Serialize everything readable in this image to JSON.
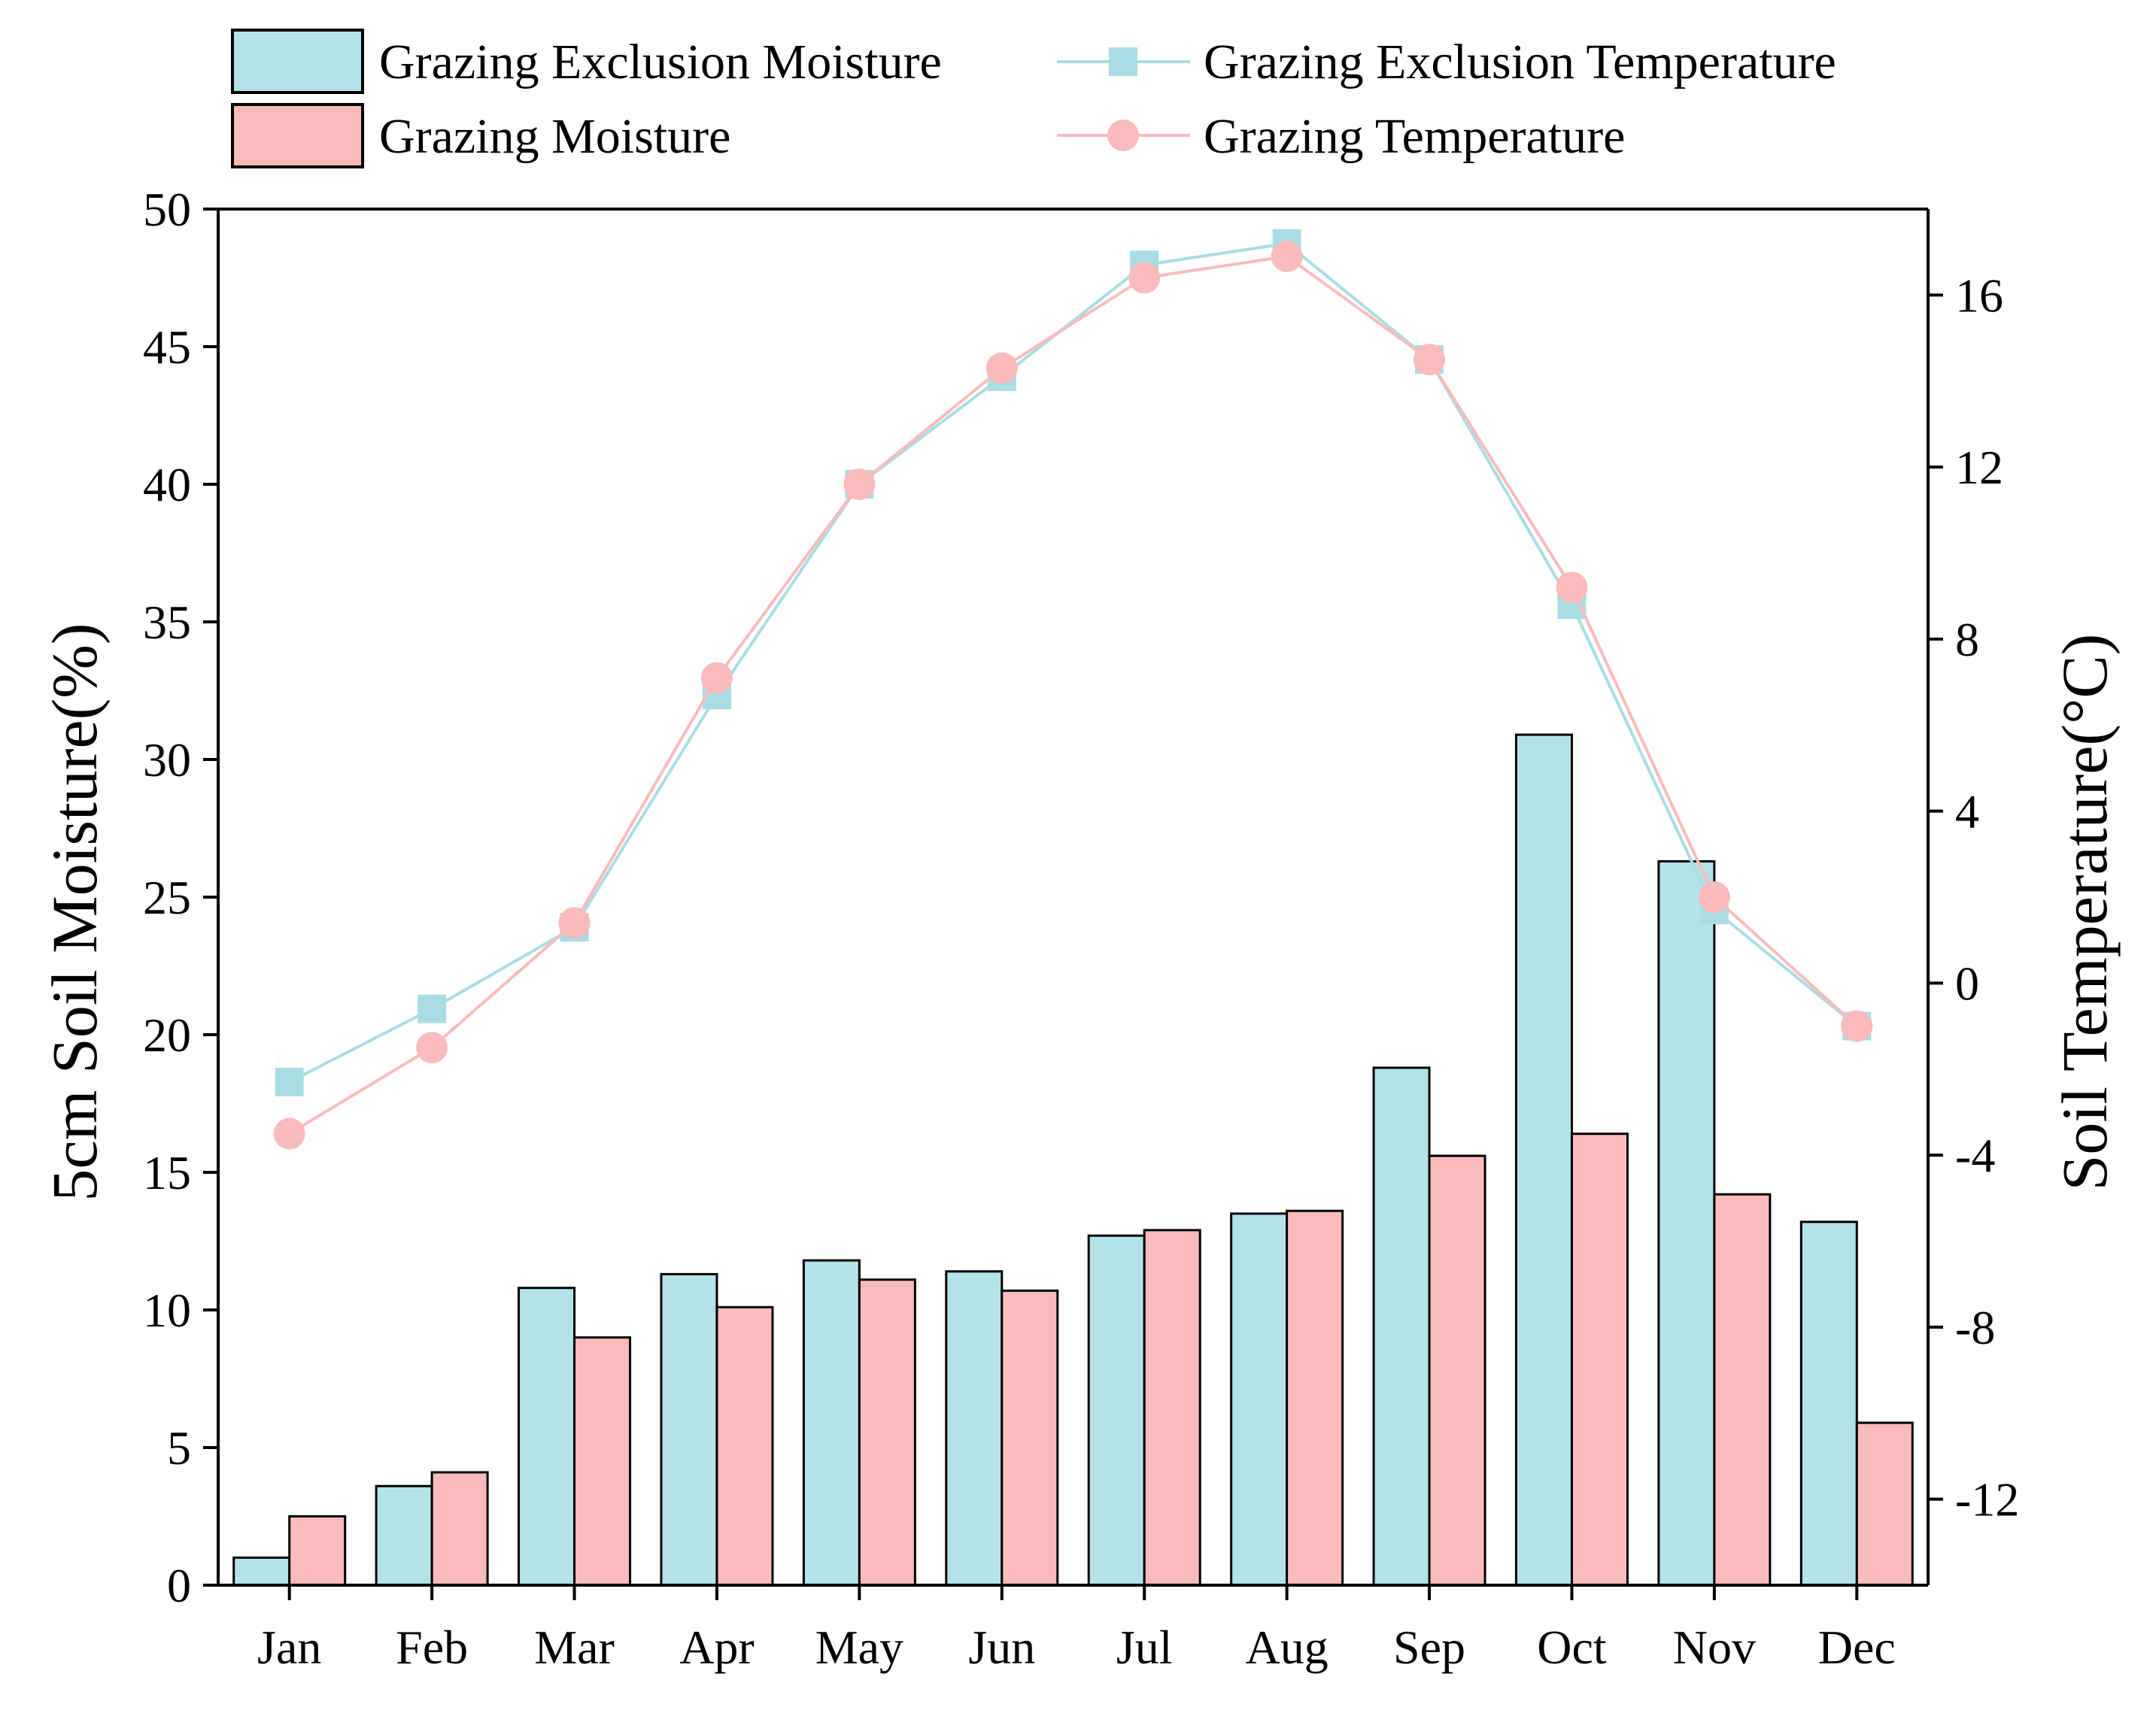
{
  "chart_data": {
    "type": "bar",
    "title": "",
    "xlabel": "",
    "ylabel": "5cm Soil Moisture(%)",
    "y2label": "Soil Temperature(°C)",
    "ylim": [
      0,
      50
    ],
    "y2lim": [
      -14,
      18
    ],
    "yticks": [
      0,
      5,
      10,
      15,
      20,
      25,
      30,
      35,
      40,
      45,
      50
    ],
    "y2ticks": [
      -12,
      -8,
      -4,
      0,
      4,
      8,
      12,
      16
    ],
    "categories": [
      "Jan",
      "Feb",
      "Mar",
      "Apr",
      "May",
      "Jun",
      "Jul",
      "Aug",
      "Sep",
      "Oct",
      "Nov",
      "Dec"
    ],
    "series": [
      {
        "name": "Grazing Exclusion Moisture",
        "kind": "bar",
        "axis": "left",
        "color": "#b3e3e8",
        "values": [
          1.0,
          3.6,
          10.8,
          11.3,
          11.8,
          11.4,
          12.7,
          13.5,
          18.8,
          30.9,
          26.3,
          13.2
        ]
      },
      {
        "name": "Grazing  Moisture",
        "kind": "bar",
        "axis": "left",
        "color": "#fabbbd",
        "values": [
          2.5,
          4.1,
          9.0,
          10.1,
          11.1,
          10.7,
          12.9,
          13.6,
          15.6,
          16.4,
          14.2,
          5.9
        ]
      },
      {
        "name": "Grazing Exclusion Temperature",
        "kind": "line",
        "marker": "square",
        "axis": "right",
        "color": "#a9dde3",
        "values": [
          -2.3,
          -0.6,
          1.3,
          6.7,
          11.6,
          14.1,
          16.7,
          17.2,
          14.5,
          8.8,
          1.7,
          -1.0
        ]
      },
      {
        "name": "Grazing Temperature",
        "kind": "line",
        "marker": "circle",
        "axis": "right",
        "color": "#fabbbd",
        "values": [
          -3.5,
          -1.5,
          1.4,
          7.1,
          11.6,
          14.3,
          16.4,
          16.9,
          14.5,
          9.2,
          2.0,
          -1.0
        ]
      }
    ],
    "legend": {
      "position": "top",
      "entries": [
        "Grazing Exclusion Moisture",
        "Grazing  Moisture",
        "Grazing Exclusion Temperature",
        "Grazing Temperature"
      ]
    },
    "grid": false
  }
}
